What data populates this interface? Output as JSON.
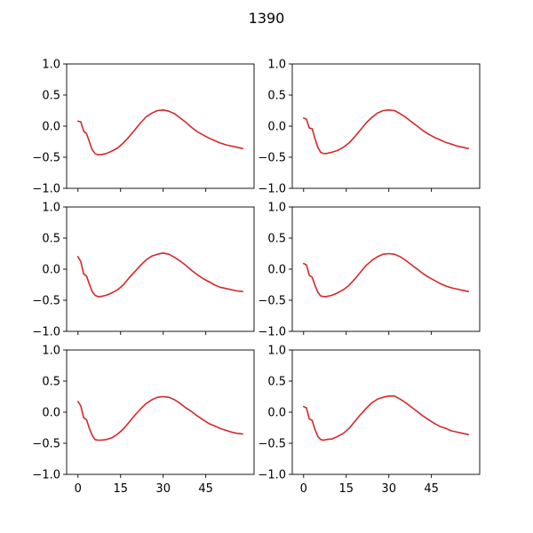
{
  "figure": {
    "title": "1390"
  },
  "chart_data": {
    "type": "line",
    "title": "1390",
    "layout": "3 rows x 2 columns, shared x and y axes",
    "line_color": "#d62728",
    "xlim": [
      -4,
      62
    ],
    "ylim": [
      -1.0,
      1.0
    ],
    "x_ticks": [
      0,
      15,
      30,
      45
    ],
    "y_ticks": [
      -1.0,
      -0.5,
      0.0,
      0.5,
      1.0
    ],
    "x_tick_labels": [
      "0",
      "15",
      "30",
      "45"
    ],
    "y_tick_labels": [
      "−1.0",
      "−0.5",
      "0.0",
      "0.5",
      "1.0"
    ],
    "grid": false,
    "panels": [
      {
        "x": [
          0,
          1,
          2,
          3,
          4,
          5,
          6,
          7,
          8,
          10,
          12,
          14,
          16,
          18,
          20,
          22,
          24,
          26,
          28,
          30,
          32,
          34,
          36,
          38,
          40,
          42,
          44,
          46,
          48,
          50,
          52,
          54,
          56,
          58
        ],
        "y": [
          0.08,
          0.07,
          -0.08,
          -0.12,
          -0.25,
          -0.38,
          -0.44,
          -0.46,
          -0.46,
          -0.44,
          -0.4,
          -0.35,
          -0.27,
          -0.17,
          -0.06,
          0.05,
          0.15,
          0.21,
          0.25,
          0.26,
          0.24,
          0.2,
          0.13,
          0.06,
          -0.02,
          -0.09,
          -0.14,
          -0.19,
          -0.23,
          -0.27,
          -0.3,
          -0.32,
          -0.34,
          -0.36
        ]
      },
      {
        "x": [
          0,
          1,
          2,
          3,
          4,
          5,
          6,
          7,
          8,
          10,
          12,
          14,
          16,
          18,
          20,
          22,
          24,
          26,
          28,
          30,
          32,
          34,
          36,
          38,
          40,
          42,
          44,
          46,
          48,
          50,
          52,
          54,
          56,
          58
        ],
        "y": [
          0.13,
          0.11,
          -0.03,
          -0.04,
          -0.2,
          -0.34,
          -0.42,
          -0.44,
          -0.44,
          -0.42,
          -0.39,
          -0.34,
          -0.27,
          -0.17,
          -0.06,
          0.05,
          0.14,
          0.21,
          0.25,
          0.26,
          0.25,
          0.2,
          0.14,
          0.07,
          0.0,
          -0.07,
          -0.13,
          -0.18,
          -0.22,
          -0.26,
          -0.29,
          -0.32,
          -0.34,
          -0.36
        ]
      },
      {
        "x": [
          0,
          1,
          2,
          3,
          4,
          5,
          6,
          7,
          8,
          10,
          12,
          14,
          16,
          18,
          20,
          22,
          24,
          26,
          28,
          30,
          32,
          34,
          36,
          38,
          40,
          42,
          44,
          46,
          48,
          50,
          52,
          54,
          56,
          58
        ],
        "y": [
          0.2,
          0.12,
          -0.08,
          -0.11,
          -0.24,
          -0.36,
          -0.42,
          -0.44,
          -0.44,
          -0.42,
          -0.38,
          -0.33,
          -0.25,
          -0.14,
          -0.04,
          0.06,
          0.15,
          0.21,
          0.24,
          0.26,
          0.24,
          0.19,
          0.13,
          0.06,
          -0.02,
          -0.09,
          -0.15,
          -0.2,
          -0.25,
          -0.29,
          -0.31,
          -0.33,
          -0.35,
          -0.36
        ]
      },
      {
        "x": [
          0,
          1,
          2,
          3,
          4,
          5,
          6,
          7,
          8,
          10,
          12,
          14,
          16,
          18,
          20,
          22,
          24,
          26,
          28,
          30,
          32,
          34,
          36,
          38,
          40,
          42,
          44,
          46,
          48,
          50,
          52,
          54,
          56,
          58
        ],
        "y": [
          0.09,
          0.07,
          -0.1,
          -0.13,
          -0.26,
          -0.37,
          -0.43,
          -0.44,
          -0.44,
          -0.42,
          -0.38,
          -0.33,
          -0.26,
          -0.16,
          -0.05,
          0.06,
          0.14,
          0.2,
          0.24,
          0.25,
          0.24,
          0.2,
          0.14,
          0.07,
          0.0,
          -0.07,
          -0.13,
          -0.18,
          -0.23,
          -0.27,
          -0.3,
          -0.32,
          -0.34,
          -0.36
        ]
      },
      {
        "x": [
          0,
          1,
          2,
          3,
          4,
          5,
          6,
          7,
          8,
          10,
          12,
          14,
          16,
          18,
          20,
          22,
          24,
          26,
          28,
          30,
          32,
          34,
          36,
          38,
          40,
          42,
          44,
          46,
          48,
          50,
          52,
          54,
          56,
          58
        ],
        "y": [
          0.17,
          0.1,
          -0.09,
          -0.12,
          -0.26,
          -0.37,
          -0.44,
          -0.45,
          -0.45,
          -0.44,
          -0.41,
          -0.35,
          -0.27,
          -0.16,
          -0.05,
          0.05,
          0.14,
          0.2,
          0.24,
          0.25,
          0.24,
          0.2,
          0.14,
          0.07,
          0.01,
          -0.06,
          -0.12,
          -0.18,
          -0.22,
          -0.26,
          -0.29,
          -0.32,
          -0.34,
          -0.35
        ]
      },
      {
        "x": [
          0,
          1,
          2,
          3,
          4,
          5,
          6,
          7,
          8,
          10,
          12,
          14,
          16,
          18,
          20,
          22,
          24,
          26,
          28,
          30,
          32,
          34,
          36,
          38,
          40,
          42,
          44,
          46,
          48,
          50,
          52,
          54,
          56,
          58
        ],
        "y": [
          0.09,
          0.07,
          -0.11,
          -0.13,
          -0.28,
          -0.39,
          -0.44,
          -0.45,
          -0.44,
          -0.43,
          -0.39,
          -0.34,
          -0.26,
          -0.15,
          -0.04,
          0.06,
          0.15,
          0.21,
          0.24,
          0.26,
          0.26,
          0.21,
          0.15,
          0.08,
          0.01,
          -0.06,
          -0.12,
          -0.18,
          -0.23,
          -0.26,
          -0.3,
          -0.32,
          -0.34,
          -0.36
        ]
      }
    ]
  }
}
